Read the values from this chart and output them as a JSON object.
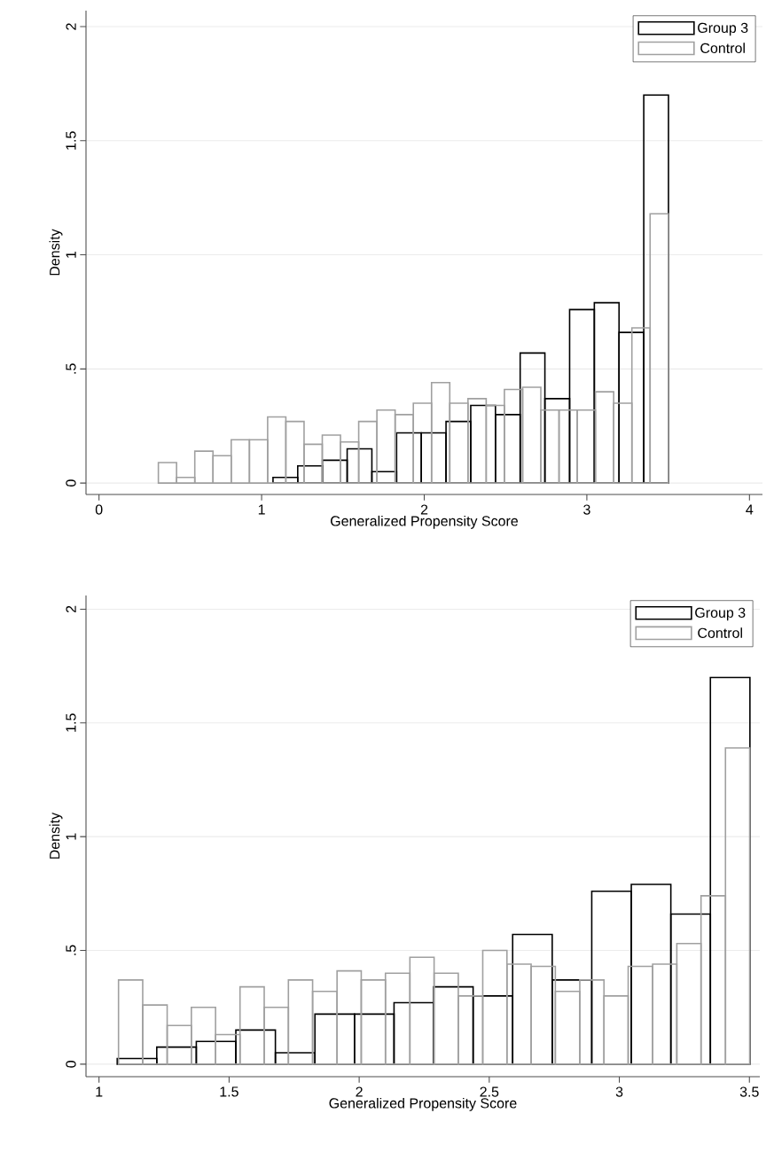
{
  "chart_data": [
    {
      "type": "histogram",
      "xlabel": "Generalized Propensity Score",
      "ylabel": "Density",
      "xlim": [
        -0.08,
        4.08
      ],
      "ylim": [
        -0.05,
        2.07
      ],
      "xticks": [
        0,
        1,
        2,
        3,
        4
      ],
      "yticks": [
        0,
        {
          "value": 0.5,
          "label": ".5"
        },
        1,
        1.5,
        2
      ],
      "grid": "y",
      "legend": "top right",
      "bins": [
        1.07,
        1.222,
        1.374,
        1.526,
        1.678,
        1.83,
        1.982,
        2.134,
        2.286,
        2.438,
        2.59,
        2.742,
        2.894,
        3.046,
        3.198,
        3.35,
        3.502
      ],
      "series": [
        {
          "name": "Group 3",
          "color": "#000000",
          "values": [
            0.025,
            0.075,
            0.1,
            0.15,
            0.05,
            0.22,
            0.22,
            0.27,
            0.34,
            0.3,
            0.57,
            0.37,
            0.76,
            0.79,
            0.66,
            1.7
          ]
        },
        {
          "name": "Control",
          "color": "#a0a0a0",
          "bins": [
            0.365,
            0.477,
            0.589,
            0.701,
            0.813,
            0.925,
            1.037,
            1.149,
            1.261,
            1.373,
            1.485,
            1.597,
            1.709,
            1.821,
            1.933,
            2.045,
            2.157,
            2.269,
            2.381,
            2.493,
            2.605,
            2.717,
            2.829,
            2.941,
            3.053,
            3.165,
            3.277,
            3.389,
            3.501
          ],
          "values": [
            0.09,
            0.025,
            0.14,
            0.12,
            0.19,
            0.19,
            0.29,
            0.27,
            0.17,
            0.21,
            0.18,
            0.27,
            0.32,
            0.3,
            0.35,
            0.44,
            0.35,
            0.37,
            0.34,
            0.41,
            0.42,
            0.32,
            0.32,
            0.32,
            0.4,
            0.35,
            0.68,
            1.18
          ]
        }
      ]
    },
    {
      "type": "histogram",
      "xlabel": "Generalized Propensity Score",
      "ylabel": "Density",
      "xlim": [
        0.95,
        3.54
      ],
      "ylim": [
        -0.055,
        2.06
      ],
      "xticks": [
        1,
        1.5,
        2,
        2.5,
        3,
        3.5
      ],
      "yticks": [
        0,
        {
          "value": 0.5,
          "label": ".5"
        },
        1,
        1.5,
        2
      ],
      "grid": "y",
      "legend": "top right",
      "bins": [
        1.07,
        1.222,
        1.374,
        1.526,
        1.678,
        1.83,
        1.982,
        2.134,
        2.286,
        2.438,
        2.59,
        2.742,
        2.894,
        3.046,
        3.198,
        3.35,
        3.502
      ],
      "series": [
        {
          "name": "Group 3",
          "color": "#000000",
          "values": [
            0.025,
            0.075,
            0.1,
            0.15,
            0.05,
            0.22,
            0.22,
            0.27,
            0.34,
            0.3,
            0.57,
            0.37,
            0.76,
            0.79,
            0.66,
            1.7
          ]
        },
        {
          "name": "Control",
          "color": "#a0a0a0",
          "bins": [
            1.075,
            1.168,
            1.262,
            1.355,
            1.448,
            1.542,
            1.635,
            1.728,
            1.821,
            1.915,
            2.008,
            2.101,
            2.195,
            2.288,
            2.381,
            2.475,
            2.568,
            2.661,
            2.754,
            2.848,
            2.941,
            3.034,
            3.128,
            3.221,
            3.314,
            3.408,
            3.501
          ],
          "values": [
            0.37,
            0.26,
            0.17,
            0.25,
            0.13,
            0.34,
            0.25,
            0.37,
            0.32,
            0.41,
            0.37,
            0.4,
            0.47,
            0.4,
            0.3,
            0.5,
            0.44,
            0.43,
            0.32,
            0.37,
            0.3,
            0.43,
            0.44,
            0.53,
            0.74,
            1.39
          ]
        }
      ]
    }
  ]
}
